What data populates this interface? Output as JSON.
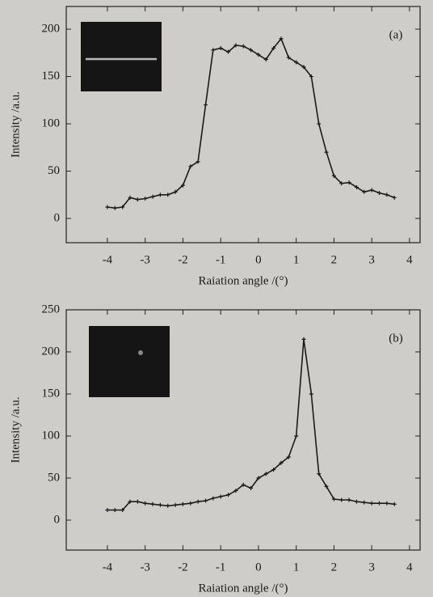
{
  "chart_data": [
    {
      "type": "line",
      "annotation": "(a)",
      "x_label": "Raiation angle /(°)",
      "y_label": "Intensity /a.u.",
      "color": "#1a1a1a",
      "x": [
        -4,
        -3.8,
        -3.6,
        -3.4,
        -3.2,
        -3.0,
        -2.8,
        -2.6,
        -2.4,
        -2.2,
        -2.0,
        -1.8,
        -1.6,
        -1.4,
        -1.2,
        -1.0,
        -0.8,
        -0.6,
        -0.4,
        -0.2,
        0,
        0.2,
        0.4,
        0.6,
        0.8,
        1.0,
        1.2,
        1.4,
        1.6,
        1.8,
        2.0,
        2.2,
        2.4,
        2.6,
        2.8,
        3.0,
        3.2,
        3.4,
        3.6
      ],
      "values": [
        12,
        11,
        12,
        22,
        20,
        21,
        23,
        25,
        25,
        28,
        35,
        55,
        60,
        120,
        178,
        180,
        176,
        183,
        182,
        178,
        173,
        168,
        180,
        190,
        170,
        165,
        160,
        150,
        100,
        70,
        45,
        37,
        38,
        33,
        28,
        30,
        27,
        25,
        22
      ],
      "xlim": [
        -5.09,
        4.28
      ],
      "ylim": [
        -25.6,
        224
      ],
      "xticks": [
        -4,
        -3,
        -2,
        -1,
        0,
        1,
        2,
        3,
        4
      ],
      "yticks": [
        0,
        50,
        100,
        150,
        200
      ]
    },
    {
      "type": "line",
      "annotation": "(b)",
      "x_label": "Raiation angle /(°)",
      "y_label": "Intensity /a.u.",
      "color": "#1a1a1a",
      "x": [
        -4,
        -3.8,
        -3.6,
        -3.4,
        -3.2,
        -3.0,
        -2.8,
        -2.6,
        -2.4,
        -2.2,
        -2.0,
        -1.8,
        -1.6,
        -1.4,
        -1.2,
        -1.0,
        -0.8,
        -0.6,
        -0.4,
        -0.2,
        0,
        0.2,
        0.4,
        0.6,
        0.8,
        1.0,
        1.2,
        1.4,
        1.6,
        1.8,
        2.0,
        2.2,
        2.4,
        2.6,
        2.8,
        3.0,
        3.2,
        3.4,
        3.6
      ],
      "values": [
        12,
        12,
        12,
        22,
        22,
        20,
        19,
        18,
        17,
        18,
        19,
        20,
        22,
        23,
        26,
        28,
        30,
        35,
        42,
        38,
        50,
        55,
        60,
        68,
        75,
        100,
        215,
        150,
        55,
        40,
        25,
        24,
        24,
        22,
        21,
        20,
        20,
        20,
        19
      ],
      "xlim": [
        -5.09,
        4.28
      ],
      "ylim": [
        -35.6,
        250
      ],
      "xticks": [
        -4,
        -3,
        -2,
        -1,
        0,
        1,
        2,
        3,
        4
      ],
      "yticks": [
        0,
        50,
        100,
        150,
        200,
        250
      ]
    }
  ]
}
